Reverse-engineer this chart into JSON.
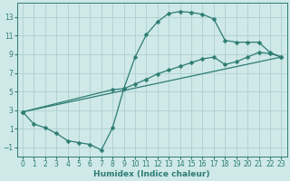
{
  "xlabel": "Humidex (Indice chaleur)",
  "xlim": [
    -0.5,
    23.5
  ],
  "ylim": [
    -2.0,
    14.5
  ],
  "xticks": [
    0,
    1,
    2,
    3,
    4,
    5,
    6,
    7,
    8,
    9,
    10,
    11,
    12,
    13,
    14,
    15,
    16,
    17,
    18,
    19,
    20,
    21,
    22,
    23
  ],
  "yticks": [
    -1,
    1,
    3,
    5,
    7,
    9,
    11,
    13
  ],
  "bg_color": "#cfe8e8",
  "grid_color": "#aed0d0",
  "line_color": "#2d7d74",
  "line1_x": [
    0,
    1,
    2,
    3,
    4,
    5,
    6,
    7,
    8,
    9,
    10,
    11,
    12,
    13,
    14,
    15,
    16,
    17,
    18,
    19,
    20,
    21,
    22,
    23
  ],
  "line1_y": [
    2.8,
    1.5,
    1.1,
    0.5,
    -0.3,
    -0.5,
    -0.7,
    -1.3,
    1.1,
    5.3,
    8.7,
    11.1,
    12.5,
    13.4,
    13.6,
    13.5,
    13.3,
    12.8,
    10.5,
    10.3,
    10.3,
    10.3,
    9.2,
    8.7
  ],
  "line2_x": [
    0,
    8,
    9,
    10,
    11,
    12,
    13,
    14,
    15,
    16,
    17,
    18,
    19,
    20,
    21,
    22,
    23
  ],
  "line2_y": [
    2.8,
    5.2,
    5.3,
    5.8,
    6.3,
    6.9,
    7.3,
    7.7,
    8.1,
    8.5,
    8.7,
    7.9,
    8.2,
    8.7,
    9.2,
    9.1,
    8.7
  ],
  "line3_x": [
    0,
    23
  ],
  "line3_y": [
    2.8,
    8.7
  ],
  "marker": "D",
  "markersize": 2.5,
  "linewidth": 0.9,
  "tick_fontsize": 5.5,
  "xlabel_fontsize": 6.5
}
